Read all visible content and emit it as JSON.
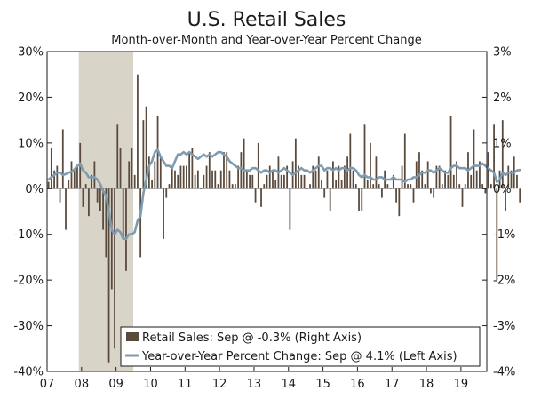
{
  "chart_data": {
    "type": "bar+line",
    "title": "U.S. Retail Sales",
    "subtitle": "Month-over-Month and Year-over-Year Percent Change",
    "left_axis": {
      "ylim": [
        -40,
        30
      ],
      "ticks": [
        30,
        20,
        10,
        0,
        -10,
        -20,
        -30,
        -40
      ],
      "tick_labels": [
        "30%",
        "20%",
        "10%",
        "0%",
        "-10%",
        "-20%",
        "-30%",
        "-40%"
      ]
    },
    "right_axis": {
      "ylim": [
        -4,
        3
      ],
      "ticks": [
        3,
        2,
        1,
        0,
        -1,
        -2,
        -3,
        -4
      ],
      "tick_labels": [
        "3%",
        "2%",
        "1%",
        "0%",
        "-1%",
        "-2%",
        "-3%",
        "-4%"
      ]
    },
    "x_axis": {
      "start": 2007.0,
      "end": 2019.75,
      "tick_labels": [
        "07",
        "08",
        "09",
        "10",
        "11",
        "12",
        "13",
        "14",
        "15",
        "16",
        "17",
        "18",
        "19"
      ]
    },
    "recession_band": {
      "start": 2007.92,
      "end": 2009.5
    },
    "legend": {
      "bar_label": "Retail Sales: Sep @ -0.3% (Right Axis)",
      "line_label": "Year-over-Year Percent Change: Sep @ 4.1% (Left Axis)"
    },
    "colors": {
      "bar": "#5a4a3c",
      "line": "#7f9bb0",
      "recession": "#d8d4c8",
      "axis": "#1a1a1a"
    },
    "series_mom": {
      "name": "Retail Sales (MoM, Right Axis, %)",
      "start_year": 2007.0,
      "values": [
        0.15,
        0.9,
        0.4,
        0.5,
        -0.3,
        1.3,
        -0.9,
        0.2,
        0.6,
        0.4,
        0.5,
        1.0,
        -0.4,
        0.1,
        -0.6,
        0.3,
        0.6,
        -0.3,
        -0.5,
        -0.9,
        -1.5,
        -3.8,
        -2.2,
        -3.5,
        1.4,
        0.9,
        -1.1,
        -1.8,
        0.6,
        0.9,
        0.3,
        2.5,
        -1.5,
        1.5,
        1.8,
        0.7,
        0.2,
        0.6,
        1.6,
        0.7,
        -1.1,
        -0.2,
        0.1,
        0.5,
        0.4,
        0.3,
        0.5,
        0.5,
        0.5,
        0.8,
        0.9,
        0.3,
        0.4,
        0.0,
        0.3,
        0.5,
        0.8,
        0.4,
        0.4,
        0.1,
        0.4,
        0.8,
        0.8,
        0.4,
        0.1,
        0.1,
        0.5,
        0.8,
        1.1,
        0.4,
        0.3,
        0.3,
        -0.3,
        1.0,
        -0.4,
        0.1,
        0.3,
        0.5,
        0.4,
        0.2,
        0.7,
        0.3,
        0.3,
        0.5,
        -0.9,
        0.6,
        1.1,
        0.5,
        0.3,
        0.3,
        0.0,
        0.1,
        0.5,
        0.4,
        0.7,
        0.2,
        -0.2,
        0.4,
        -0.5,
        0.6,
        0.2,
        0.5,
        0.2,
        0.5,
        0.7,
        1.2,
        0.4,
        0.1,
        -0.5,
        -0.5,
        1.4,
        0.2,
        1.0,
        0.1,
        0.7,
        0.1,
        -0.2,
        0.4,
        0.1,
        0.0,
        0.3,
        -0.3,
        -0.6,
        0.5,
        1.2,
        0.1,
        0.1,
        -0.3,
        0.6,
        0.8,
        0.4,
        0.1,
        0.6,
        -0.1,
        -0.2,
        0.5,
        0.5,
        0.1,
        0.4,
        0.3,
        1.6,
        0.3,
        0.6,
        0.1,
        -0.4,
        0.1,
        0.8,
        0.3,
        1.3,
        0.4,
        0.6,
        0.1,
        -0.1,
        0.8,
        0.1,
        1.4,
        -2.0,
        0.4,
        1.5,
        -0.5,
        0.5,
        0.4,
        0.7,
        0.3,
        -0.3
      ]
    },
    "series_yoy": {
      "name": "Year-over-Year Percent Change (Left Axis, %)",
      "start_year": 2007.0,
      "values": [
        2.0,
        2.5,
        3.0,
        3.5,
        3.5,
        3.0,
        3.2,
        3.5,
        3.7,
        4.2,
        5.0,
        5.5,
        4.0,
        3.5,
        2.5,
        2.5,
        2.5,
        2.0,
        1.0,
        -0.5,
        -1.5,
        -5.0,
        -9.0,
        -10.0,
        -9.0,
        -9.5,
        -11.0,
        -11.0,
        -10.0,
        -10.0,
        -9.5,
        -7.0,
        -6.0,
        -1.0,
        2.0,
        5.0,
        6.0,
        8.0,
        8.5,
        7.0,
        6.0,
        5.0,
        5.0,
        4.5,
        6.0,
        7.5,
        7.5,
        8.0,
        7.5,
        8.0,
        7.5,
        7.0,
        6.5,
        7.0,
        7.5,
        7.0,
        7.5,
        7.0,
        7.5,
        8.0,
        8.0,
        7.5,
        7.0,
        6.0,
        5.5,
        5.0,
        4.5,
        4.5,
        4.0,
        4.0,
        4.0,
        4.5,
        4.5,
        4.0,
        3.5,
        4.0,
        4.0,
        3.5,
        4.0,
        4.0,
        3.5,
        4.0,
        4.5,
        4.0,
        3.5,
        3.0,
        3.5,
        4.0,
        4.5,
        4.0,
        4.0,
        3.5,
        4.0,
        4.5,
        5.0,
        5.0,
        4.0,
        4.5,
        4.5,
        4.0,
        4.5,
        4.0,
        4.5,
        4.5,
        4.0,
        4.5,
        4.5,
        4.0,
        3.0,
        2.5,
        3.0,
        2.5,
        2.5,
        2.0,
        2.0,
        2.5,
        2.5,
        2.0,
        2.0,
        2.0,
        2.5,
        2.0,
        2.0,
        2.0,
        1.5,
        2.0,
        2.0,
        2.5,
        2.5,
        3.0,
        3.5,
        3.5,
        4.0,
        4.0,
        3.5,
        4.0,
        4.5,
        4.0,
        3.5,
        3.5,
        4.5,
        5.0,
        5.0,
        4.5,
        4.5,
        4.5,
        4.0,
        4.5,
        5.0,
        5.0,
        5.0,
        5.5,
        5.0,
        4.5,
        4.0,
        3.5,
        1.5,
        2.0,
        3.5,
        3.0,
        3.5,
        3.5,
        3.5,
        4.0,
        4.1
      ]
    }
  }
}
